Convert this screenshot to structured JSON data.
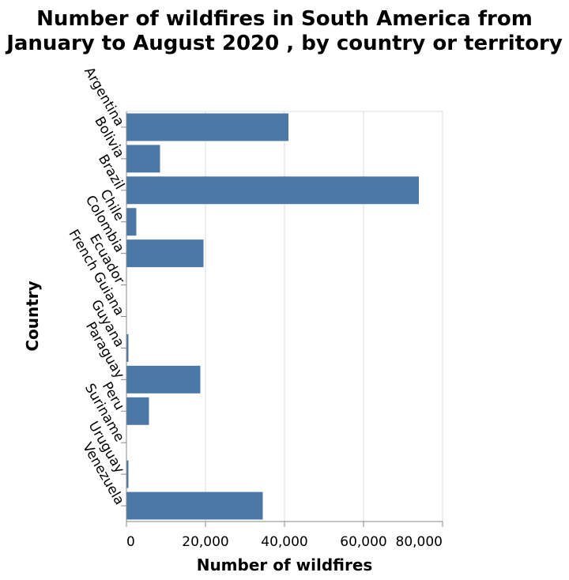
{
  "chart_data": {
    "type": "bar",
    "orientation": "horizontal",
    "title": "Number of wildfires in South America from January to August 2020 , by country or territory",
    "title_lines": [
      "Number of wildfires in South America from",
      "January to August 2020 , by country or territory"
    ],
    "xlabel": "Number of wildfires",
    "ylabel": "Country",
    "categories": [
      "Argentina",
      "Bolivia",
      "Brazil",
      "Chile",
      "Colombia",
      "Ecuador",
      "French Guiana",
      "Guyana",
      "Paraguay",
      "Peru",
      "Suriname",
      "Uruguay",
      "Venezuela"
    ],
    "values": [
      41000,
      8500,
      74000,
      2500,
      19500,
      100,
      50,
      500,
      18700,
      5700,
      50,
      500,
      34500
    ],
    "xlim": [
      0,
      80000
    ],
    "x_ticks": [
      0,
      20000,
      40000,
      60000,
      80000
    ],
    "x_tick_labels": [
      "0",
      "20,000",
      "40,000",
      "60,000",
      "80,000"
    ],
    "grid": true,
    "bar_color": "#4c78a8"
  }
}
